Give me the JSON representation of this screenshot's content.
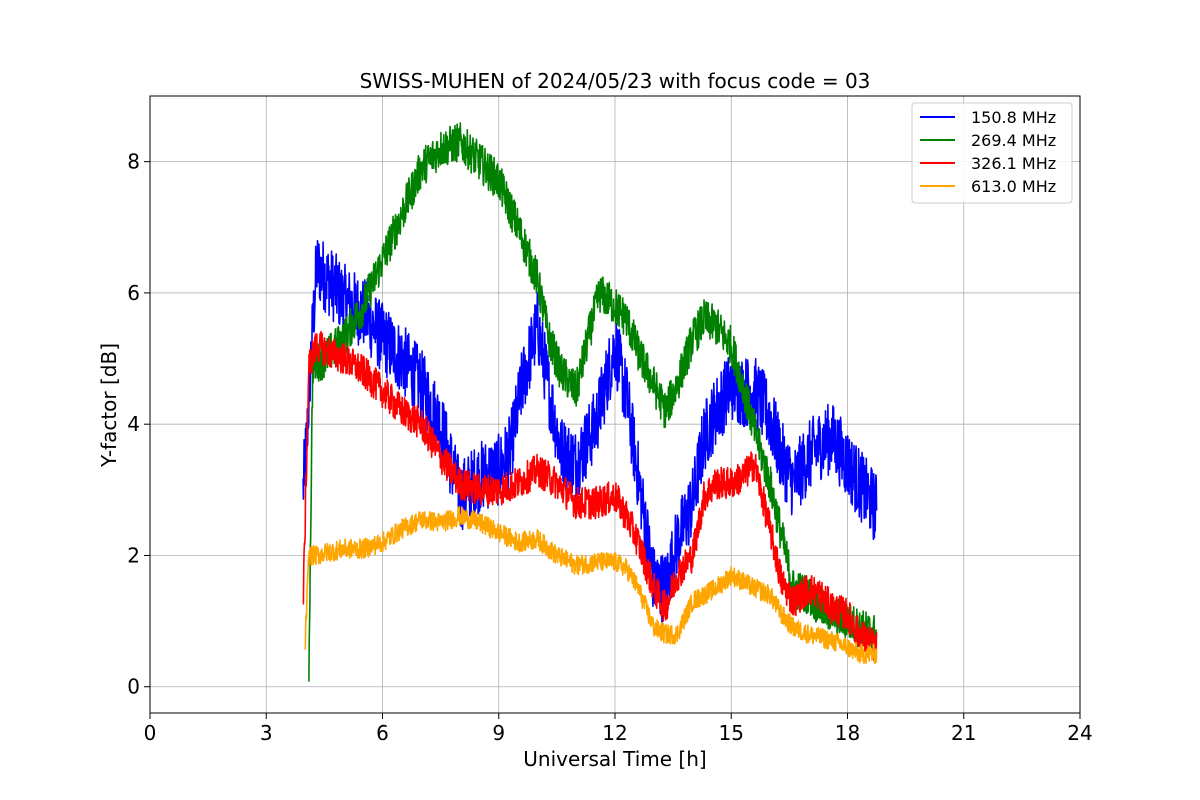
{
  "chart_data": {
    "type": "line",
    "title": "SWISS-MUHEN of 2024/05/23 with focus code = 03",
    "xlabel": "Universal Time [h]",
    "ylabel": "Y-factor [dB]",
    "xlim": [
      0,
      24
    ],
    "ylim": [
      -0.4,
      9.0
    ],
    "xticks": [
      0,
      3,
      6,
      9,
      12,
      15,
      18,
      21,
      24
    ],
    "xtick_labels": [
      "0",
      "3",
      "6",
      "9",
      "12",
      "15",
      "18",
      "21",
      "24"
    ],
    "yticks": [
      0,
      2,
      4,
      6,
      8
    ],
    "ytick_labels": [
      "0",
      "2",
      "4",
      "6",
      "8"
    ],
    "grid": true,
    "legend_position": "top-right",
    "series": [
      {
        "name": "150.8 MHz",
        "color": "#0000ff",
        "noise": 0.55,
        "x": [
          3.95,
          4.05,
          4.15,
          4.3,
          4.6,
          5.0,
          5.5,
          6.0,
          6.5,
          7.0,
          7.5,
          8.0,
          8.5,
          9.0,
          9.3,
          9.6,
          10.0,
          10.3,
          10.6,
          11.0,
          11.5,
          12.0,
          12.3,
          12.6,
          13.0,
          13.3,
          13.6,
          14.0,
          14.3,
          14.6,
          15.0,
          15.3,
          15.6,
          16.0,
          16.3,
          16.6,
          17.0,
          17.3,
          17.6,
          18.0,
          18.3,
          18.75
        ],
        "y": [
          3.0,
          3.8,
          5.0,
          6.4,
          6.2,
          5.9,
          5.7,
          5.3,
          5.0,
          4.6,
          4.0,
          2.9,
          3.2,
          3.3,
          3.6,
          4.6,
          5.5,
          4.5,
          3.6,
          3.4,
          4.0,
          5.2,
          4.4,
          3.2,
          1.6,
          1.5,
          2.2,
          2.8,
          3.8,
          4.2,
          4.6,
          4.5,
          4.5,
          4.1,
          3.5,
          3.1,
          3.5,
          3.7,
          3.8,
          3.4,
          3.1,
          2.7
        ]
      },
      {
        "name": "269.4 MHz",
        "color": "#008000",
        "noise": 0.3,
        "x": [
          4.1,
          4.2,
          4.5,
          5.0,
          5.5,
          6.0,
          6.5,
          7.0,
          7.5,
          8.0,
          8.5,
          9.0,
          9.5,
          10.0,
          10.3,
          10.6,
          11.0,
          11.3,
          11.6,
          12.0,
          12.3,
          12.6,
          13.0,
          13.3,
          13.6,
          14.0,
          14.3,
          14.6,
          15.0,
          15.3,
          15.6,
          16.0,
          16.3,
          16.6,
          17.0,
          17.3,
          17.6,
          18.0,
          18.3,
          18.75
        ],
        "y": [
          0.3,
          4.9,
          5.0,
          5.3,
          5.8,
          6.5,
          7.2,
          7.9,
          8.2,
          8.3,
          8.0,
          7.7,
          7.0,
          6.2,
          5.3,
          4.8,
          4.5,
          5.3,
          6.0,
          5.8,
          5.6,
          5.1,
          4.6,
          4.2,
          4.6,
          5.3,
          5.6,
          5.5,
          5.2,
          4.6,
          3.9,
          3.1,
          2.3,
          1.5,
          1.4,
          1.2,
          1.1,
          1.0,
          0.9,
          0.8
        ]
      },
      {
        "name": "326.1 MHz",
        "color": "#ff0000",
        "noise": 0.25,
        "x": [
          3.95,
          4.1,
          4.3,
          4.6,
          5.0,
          5.5,
          6.0,
          6.5,
          7.0,
          7.5,
          8.0,
          8.5,
          9.0,
          9.5,
          10.0,
          10.5,
          11.0,
          11.5,
          12.0,
          12.3,
          12.6,
          13.0,
          13.3,
          13.6,
          14.0,
          14.3,
          14.6,
          15.0,
          15.3,
          15.6,
          16.0,
          16.3,
          16.6,
          17.0,
          17.3,
          17.6,
          18.0,
          18.3,
          18.75
        ],
        "y": [
          1.2,
          4.9,
          5.2,
          5.1,
          5.0,
          4.8,
          4.5,
          4.2,
          4.0,
          3.5,
          3.1,
          3.0,
          3.0,
          3.1,
          3.3,
          3.1,
          2.8,
          2.8,
          2.9,
          2.6,
          2.2,
          1.5,
          1.2,
          1.7,
          2.0,
          2.9,
          3.1,
          3.1,
          3.2,
          3.4,
          2.4,
          1.6,
          1.3,
          1.5,
          1.4,
          1.2,
          1.1,
          0.8,
          0.6
        ]
      },
      {
        "name": "613.0 MHz",
        "color": "#ffa500",
        "noise": 0.15,
        "x": [
          4.0,
          4.1,
          4.3,
          4.6,
          5.0,
          5.5,
          6.0,
          6.5,
          7.0,
          7.5,
          8.0,
          8.5,
          9.0,
          9.5,
          10.0,
          10.5,
          11.0,
          11.5,
          12.0,
          12.3,
          12.6,
          13.0,
          13.3,
          13.6,
          14.0,
          14.3,
          14.6,
          15.0,
          15.3,
          15.6,
          16.0,
          16.3,
          16.6,
          17.0,
          17.3,
          17.6,
          18.0,
          18.3,
          18.75
        ],
        "y": [
          0.6,
          2.0,
          2.0,
          2.05,
          2.1,
          2.1,
          2.2,
          2.4,
          2.55,
          2.5,
          2.6,
          2.5,
          2.35,
          2.2,
          2.25,
          2.0,
          1.85,
          1.9,
          1.9,
          1.8,
          1.5,
          0.9,
          0.8,
          0.8,
          1.3,
          1.4,
          1.5,
          1.7,
          1.6,
          1.5,
          1.4,
          1.1,
          0.9,
          0.8,
          0.75,
          0.7,
          0.6,
          0.5,
          0.5
        ]
      }
    ]
  }
}
